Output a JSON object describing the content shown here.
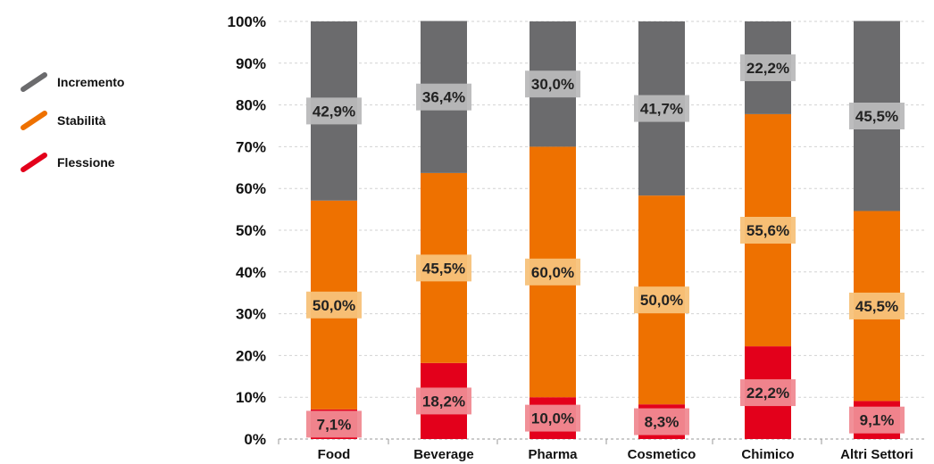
{
  "chart_data": {
    "type": "bar",
    "stacked": true,
    "title": "",
    "xlabel": "",
    "ylabel": "",
    "ylim": [
      0,
      100
    ],
    "yticks": [
      "0%",
      "10%",
      "20%",
      "30%",
      "40%",
      "50%",
      "60%",
      "70%",
      "80%",
      "90%",
      "100%"
    ],
    "grid": true,
    "legend_position": "left",
    "categories": [
      "Food",
      "Beverage",
      "Pharma",
      "Cosmetico",
      "Chimico",
      "Altri Settori"
    ],
    "series": [
      {
        "name": "Flessione",
        "color": "#e3001b",
        "label_bg": "#f08a92",
        "values": [
          7.1,
          18.2,
          10.0,
          8.3,
          22.2,
          9.1
        ],
        "labels": [
          "7,1%",
          "18,2%",
          "10,0%",
          "8,3%",
          "22,2%",
          "9,1%"
        ]
      },
      {
        "name": "Stabilità",
        "color": "#ee7100",
        "label_bg": "#f7c27a",
        "values": [
          50.0,
          45.5,
          60.0,
          50.0,
          55.6,
          45.5
        ],
        "labels": [
          "50,0%",
          "45,5%",
          "60,0%",
          "50,0%",
          "55,6%",
          "45,5%"
        ]
      },
      {
        "name": "Incremento",
        "color": "#6b6b6d",
        "label_bg": "#b9b9bb",
        "values": [
          42.9,
          36.4,
          30.0,
          41.7,
          22.2,
          45.5
        ],
        "labels": [
          "42,9%",
          "36,4%",
          "30,0%",
          "41,7%",
          "22,2%",
          "45,5%"
        ]
      }
    ],
    "legend": [
      "Incremento",
      "Stabilità",
      "Flessione"
    ]
  }
}
